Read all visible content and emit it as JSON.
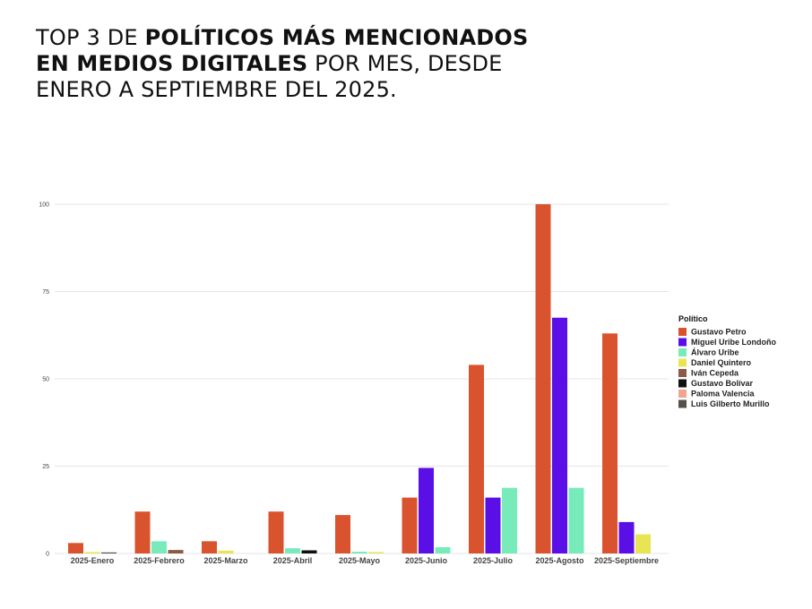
{
  "header": {
    "line1_regular": "TOP 3 DE ",
    "line1_bold": "POLÍTICOS MÁS MENCIONADOS",
    "line2_bold": "EN MEDIOS DIGITALES",
    "line2_regular": " POR MES, DESDE",
    "line3_regular": "ENERO A SEPTIEMBRE DEL 2025."
  },
  "chart_data": {
    "type": "bar",
    "title": "TOP 3 DE POLÍTICOS MÁS MENCIONADOS EN MEDIOS DIGITALES POR MES, DESDE ENERO A SEPTIEMBRE DEL 2025.",
    "xlabel": "",
    "ylabel": "",
    "ylim": [
      0,
      100
    ],
    "yticks": [
      0,
      25,
      50,
      75,
      100
    ],
    "grid": true,
    "legend_title": "Político",
    "legend_position": "right",
    "categories": [
      "2025-Enero",
      "2025-Febrero",
      "2025-Marzo",
      "2025-Abril",
      "2025-Mayo",
      "2025-Junio",
      "2025-Julio",
      "2025-Agosto",
      "2025-Septiembre"
    ],
    "series": [
      {
        "name": "Gustavo Petro",
        "color": "#D9542E",
        "values": [
          3,
          12,
          3.5,
          12,
          11,
          16,
          54,
          100,
          63
        ]
      },
      {
        "name": "Miguel Uribe Londoño",
        "color": "#5A0FE6",
        "values": [
          null,
          null,
          null,
          null,
          null,
          24.5,
          16,
          67.5,
          9
        ]
      },
      {
        "name": "Álvaro Uribe",
        "color": "#78EBBB",
        "values": [
          null,
          3.5,
          null,
          1.5,
          0.5,
          1.8,
          18.8,
          18.8,
          null
        ]
      },
      {
        "name": "Daniel Quintero",
        "color": "#E9E454",
        "values": [
          0.4,
          null,
          0.8,
          null,
          0.4,
          null,
          null,
          null,
          5.5
        ]
      },
      {
        "name": "Iván Cepeda",
        "color": "#8A5A45",
        "values": [
          null,
          1,
          null,
          null,
          null,
          null,
          null,
          null,
          null
        ]
      },
      {
        "name": "Gustavo Bolívar",
        "color": "#111111",
        "values": [
          null,
          null,
          null,
          0.9,
          null,
          null,
          null,
          null,
          null
        ]
      },
      {
        "name": "Paloma Valencia",
        "color": "#F2A58E",
        "values": [
          null,
          null,
          null,
          null,
          null,
          null,
          null,
          null,
          null
        ]
      },
      {
        "name": "Luis Gilberto Murillo",
        "color": "#555049",
        "values": [
          0.3,
          null,
          null,
          null,
          null,
          null,
          null,
          null,
          null
        ]
      }
    ],
    "month_slots": [
      [
        "Gustavo Petro",
        "Daniel Quintero",
        "Luis Gilberto Murillo"
      ],
      [
        "Gustavo Petro",
        "Álvaro Uribe",
        "Iván Cepeda"
      ],
      [
        "Gustavo Petro",
        "Daniel Quintero",
        null
      ],
      [
        "Gustavo Petro",
        "Álvaro Uribe",
        "Gustavo Bolívar"
      ],
      [
        "Gustavo Petro",
        "Álvaro Uribe",
        "Daniel Quintero"
      ],
      [
        "Gustavo Petro",
        "Miguel Uribe Londoño",
        "Álvaro Uribe"
      ],
      [
        "Gustavo Petro",
        "Miguel Uribe Londoño",
        "Álvaro Uribe"
      ],
      [
        "Gustavo Petro",
        "Miguel Uribe Londoño",
        "Álvaro Uribe"
      ],
      [
        "Gustavo Petro",
        "Miguel Uribe Londoño",
        "Daniel Quintero"
      ]
    ]
  }
}
